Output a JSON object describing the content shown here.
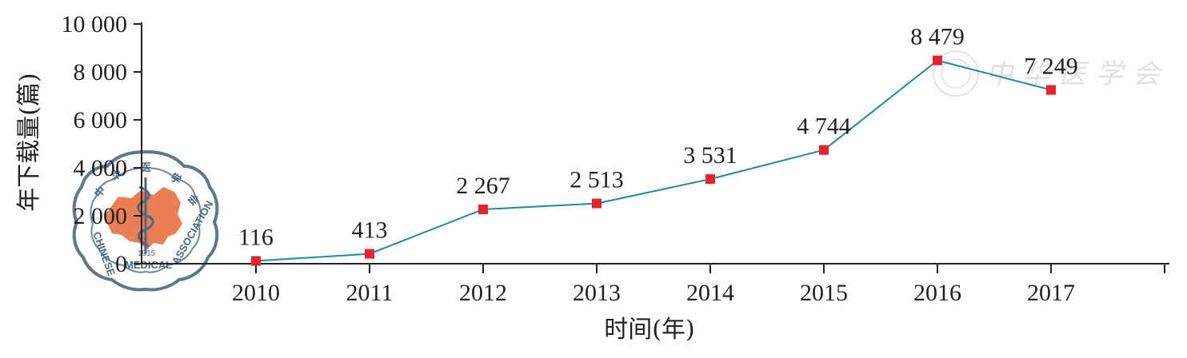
{
  "chart_data": {
    "type": "line",
    "title": "",
    "xlabel": "时间(年)",
    "ylabel": "年下载量(篇)",
    "categories": [
      "2010",
      "2011",
      "2012",
      "2013",
      "2014",
      "2015",
      "2016",
      "2017"
    ],
    "values": [
      116,
      413,
      2267,
      2513,
      3531,
      4744,
      8479,
      7249
    ],
    "data_labels": [
      "116",
      "413",
      "2 267",
      "2 513",
      "3 531",
      "4 744",
      "8 479",
      "7 249"
    ],
    "ylim": [
      0,
      10000
    ],
    "yticks": [
      0,
      2000,
      4000,
      6000,
      8000,
      10000
    ],
    "ytick_labels": [
      "0",
      "2 000",
      "4 000",
      "6 000",
      "8 000",
      "10 000"
    ],
    "grid": false,
    "legend": "none",
    "line_color": "#1b8aa8",
    "marker_color": "#e8222b",
    "marker_shape": "square"
  },
  "watermark": {
    "seal_text_top": "中华医学会",
    "seal_text_ring": "CHINESE MEDICAL ASSOCIATION",
    "seal_year": "1915",
    "faded_text": "中华医学会",
    "seal_color": "#4a6a80",
    "map_color": "#e8784a"
  }
}
